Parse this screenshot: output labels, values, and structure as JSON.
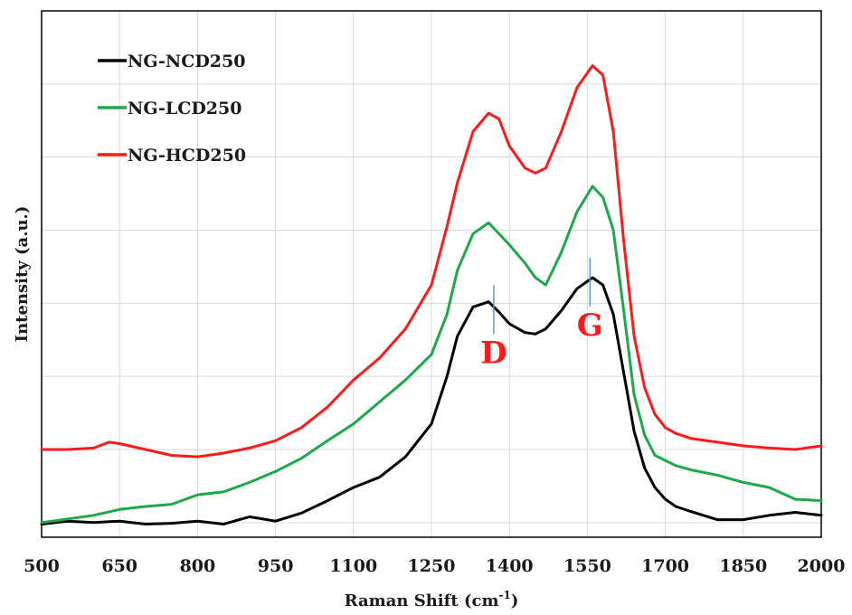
{
  "chart_data": {
    "type": "line",
    "xlabel": "Raman Shift (cm",
    "xlabel_sup": "-1",
    "xlabel_close": ")",
    "ylabel": "Intensity (a.u.)",
    "xlim": [
      500,
      2000
    ],
    "ylim": [
      0,
      7.2
    ],
    "x_ticks": [
      "500",
      "650",
      "800",
      "950",
      "1100",
      "1250",
      "1400",
      "1550",
      "1700",
      "1850",
      "2000"
    ],
    "y_gridlines": [
      0.2,
      1.2,
      2.2,
      3.2,
      4.2,
      5.2,
      6.2,
      7.2
    ],
    "grid": true,
    "legend_position": "top-left",
    "series": [
      {
        "name": "NG-NCD250",
        "color": "#000000",
        "x": [
          500,
          550,
          600,
          650,
          700,
          750,
          800,
          850,
          900,
          950,
          1000,
          1050,
          1100,
          1150,
          1200,
          1250,
          1280,
          1300,
          1330,
          1360,
          1380,
          1400,
          1430,
          1450,
          1470,
          1500,
          1530,
          1560,
          1580,
          1600,
          1620,
          1640,
          1660,
          1680,
          1700,
          1720,
          1750,
          1800,
          1850,
          1900,
          1950,
          2000
        ],
        "y": [
          0.18,
          0.22,
          0.2,
          0.22,
          0.18,
          0.19,
          0.22,
          0.18,
          0.28,
          0.22,
          0.33,
          0.5,
          0.68,
          0.82,
          1.1,
          1.55,
          2.2,
          2.75,
          3.15,
          3.22,
          3.08,
          2.92,
          2.8,
          2.78,
          2.85,
          3.1,
          3.4,
          3.55,
          3.45,
          3.05,
          2.25,
          1.45,
          0.95,
          0.68,
          0.52,
          0.42,
          0.35,
          0.24,
          0.24,
          0.3,
          0.34,
          0.3
        ]
      },
      {
        "name": "NG-LCD250",
        "color": "#1fa84a",
        "x": [
          500,
          550,
          600,
          650,
          700,
          750,
          800,
          850,
          900,
          950,
          1000,
          1050,
          1100,
          1150,
          1200,
          1250,
          1280,
          1300,
          1330,
          1360,
          1380,
          1400,
          1430,
          1450,
          1470,
          1500,
          1530,
          1560,
          1580,
          1600,
          1620,
          1640,
          1660,
          1680,
          1700,
          1720,
          1750,
          1800,
          1850,
          1900,
          1950,
          2000
        ],
        "y": [
          0.2,
          0.25,
          0.3,
          0.38,
          0.42,
          0.45,
          0.58,
          0.62,
          0.75,
          0.9,
          1.08,
          1.32,
          1.55,
          1.85,
          2.15,
          2.5,
          3.05,
          3.65,
          4.15,
          4.3,
          4.15,
          4.0,
          3.75,
          3.55,
          3.45,
          3.9,
          4.45,
          4.8,
          4.65,
          4.2,
          3.1,
          1.95,
          1.4,
          1.12,
          1.05,
          0.98,
          0.92,
          0.85,
          0.75,
          0.68,
          0.52,
          0.5
        ]
      },
      {
        "name": "NG-HCD250",
        "color": "#ff1a1a",
        "x": [
          500,
          550,
          600,
          630,
          650,
          700,
          750,
          800,
          850,
          900,
          950,
          1000,
          1050,
          1100,
          1150,
          1200,
          1250,
          1280,
          1300,
          1330,
          1360,
          1380,
          1400,
          1430,
          1450,
          1470,
          1500,
          1530,
          1560,
          1580,
          1600,
          1620,
          1640,
          1660,
          1680,
          1700,
          1720,
          1750,
          1800,
          1850,
          1900,
          1950,
          2000
        ],
        "y": [
          1.2,
          1.2,
          1.22,
          1.3,
          1.28,
          1.2,
          1.12,
          1.1,
          1.15,
          1.22,
          1.32,
          1.5,
          1.78,
          2.15,
          2.45,
          2.85,
          3.45,
          4.25,
          4.85,
          5.55,
          5.8,
          5.72,
          5.35,
          5.05,
          4.98,
          5.05,
          5.55,
          6.15,
          6.45,
          6.32,
          5.55,
          4.05,
          2.75,
          2.05,
          1.68,
          1.5,
          1.42,
          1.35,
          1.3,
          1.25,
          1.22,
          1.2,
          1.25
        ]
      }
    ],
    "annotations": [
      {
        "text": "D",
        "x": 1370,
        "color": "#ff1a1a",
        "marker_color": "#5b9bd5"
      },
      {
        "text": "G",
        "x": 1555,
        "color": "#ff1a1a",
        "marker_color": "#5b9bd5"
      }
    ]
  }
}
